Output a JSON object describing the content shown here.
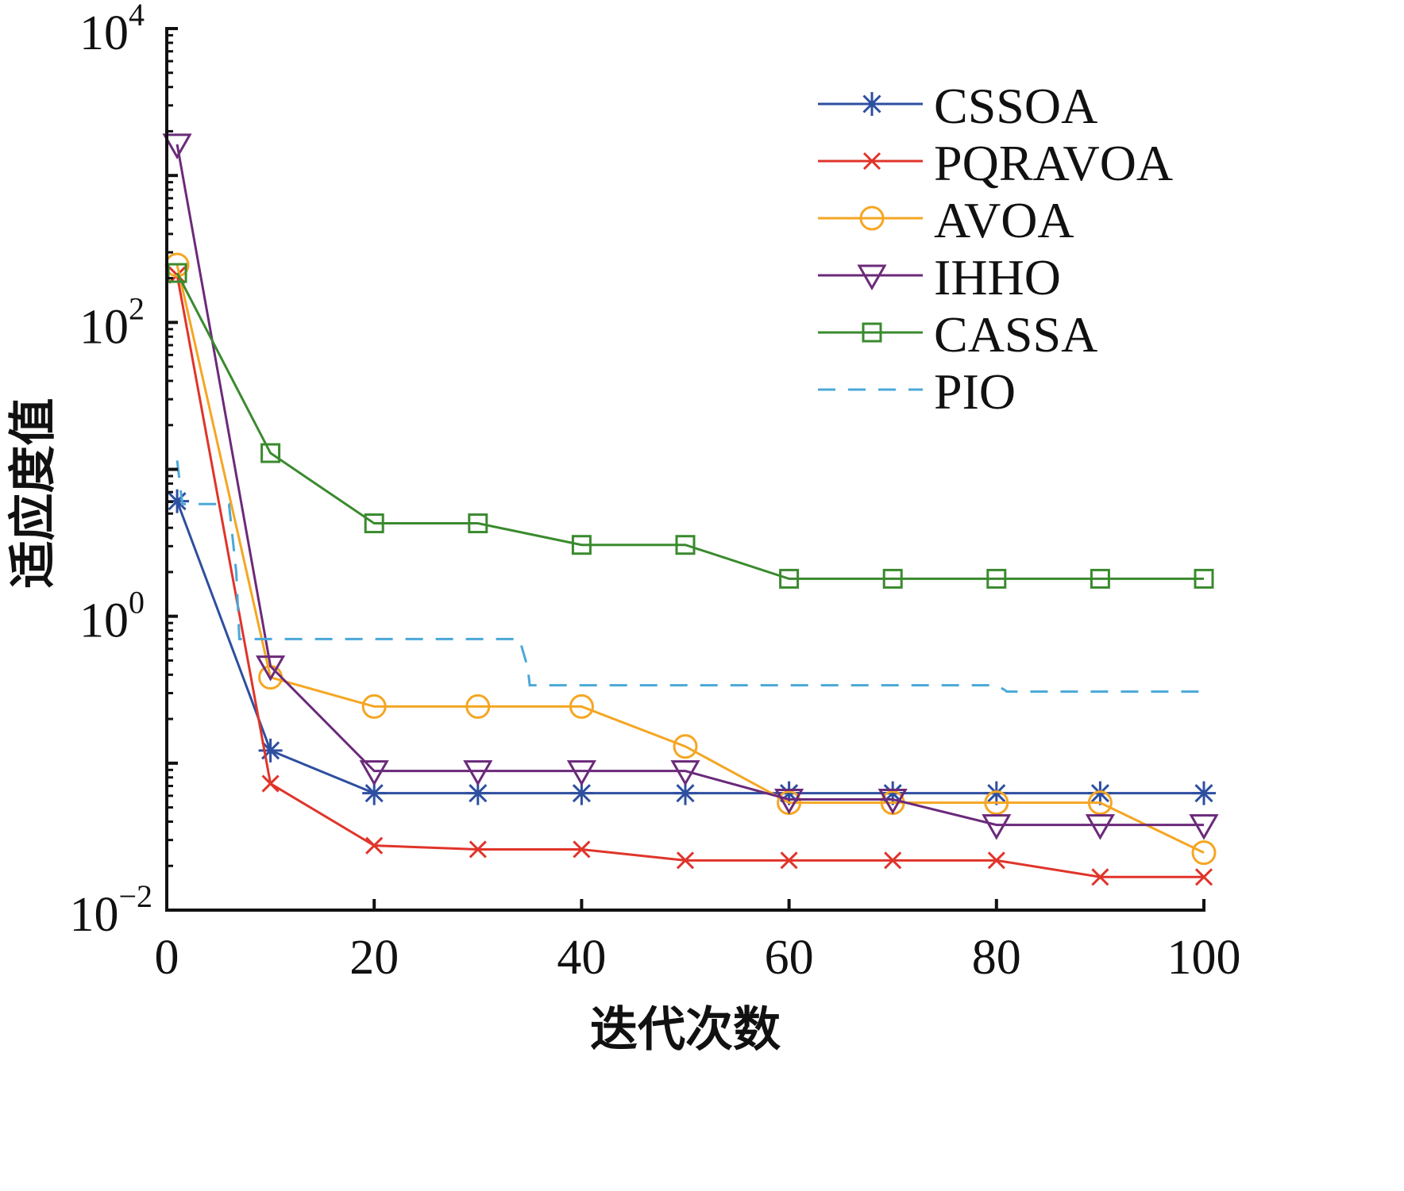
{
  "chart_data": {
    "type": "line",
    "title": "",
    "xlabel": "迭代次数",
    "ylabel": "适应度值",
    "xlim": [
      0,
      100
    ],
    "ylim": [
      0.01,
      10000
    ],
    "yscale": "log",
    "grid": false,
    "legend_position": "top-right",
    "x_ticks": [
      0,
      20,
      40,
      60,
      80,
      100
    ],
    "x_tick_labels": [
      "0",
      "20",
      "40",
      "60",
      "80",
      "100"
    ],
    "y_ticks": [
      0.01,
      1,
      100,
      10000
    ],
    "y_tick_labels": [
      {
        "base": "10",
        "exp": "−2"
      },
      {
        "base": "10",
        "exp": "0"
      },
      {
        "base": "10",
        "exp": "2"
      },
      {
        "base": "10",
        "exp": "4"
      }
    ],
    "series": [
      {
        "name": "CSSOA",
        "color": "#2e4fa0",
        "marker": "asterisk",
        "dash": "solid",
        "x": [
          1,
          10,
          20,
          30,
          40,
          50,
          60,
          70,
          80,
          90,
          100
        ],
        "values": [
          6.07,
          0.122,
          0.0625,
          0.0625,
          0.0625,
          0.0625,
          0.0625,
          0.0625,
          0.0625,
          0.0625,
          0.0625
        ]
      },
      {
        "name": "PQRAVOA",
        "color": "#e0342a",
        "marker": "x",
        "dash": "solid",
        "x": [
          1,
          10,
          20,
          30,
          40,
          50,
          60,
          70,
          80,
          90,
          100
        ],
        "values": [
          210,
          0.0726,
          0.0275,
          0.0259,
          0.0259,
          0.0218,
          0.0218,
          0.0218,
          0.0218,
          0.0168,
          0.0168
        ]
      },
      {
        "name": "AVOA",
        "color": "#f5a623",
        "marker": "circle",
        "dash": "solid",
        "x": [
          1,
          10,
          20,
          30,
          40,
          50,
          60,
          70,
          80,
          90,
          100
        ],
        "values": [
          246,
          0.384,
          0.243,
          0.243,
          0.243,
          0.13,
          0.0538,
          0.0538,
          0.0538,
          0.0538,
          0.0246
        ]
      },
      {
        "name": "IHHO",
        "color": "#6b2a7a",
        "marker": "triangle-down",
        "dash": "solid",
        "x": [
          1,
          10,
          20,
          30,
          40,
          50,
          60,
          70,
          80,
          90,
          100
        ],
        "values": [
          1630,
          0.457,
          0.0885,
          0.0885,
          0.0885,
          0.0885,
          0.0567,
          0.0567,
          0.038,
          0.038,
          0.038
        ]
      },
      {
        "name": "CASSA",
        "color": "#3a8a2e",
        "marker": "square",
        "dash": "solid",
        "x": [
          1,
          10,
          20,
          30,
          40,
          50,
          60,
          70,
          80,
          90,
          100
        ],
        "values": [
          217,
          12.9,
          4.29,
          4.29,
          3.06,
          3.06,
          1.8,
          1.8,
          1.8,
          1.8,
          1.8
        ]
      },
      {
        "name": "PIO",
        "color": "#4aa8d8",
        "marker": "none",
        "dash": "dashed",
        "x": [
          1,
          1.5,
          6,
          6.7,
          7,
          34,
          34.8,
          35,
          80,
          80.8,
          81,
          100
        ],
        "values": [
          11.5,
          5.8,
          5.8,
          2.0,
          0.7,
          0.7,
          0.45,
          0.339,
          0.339,
          0.315,
          0.307,
          0.307
        ]
      }
    ]
  }
}
